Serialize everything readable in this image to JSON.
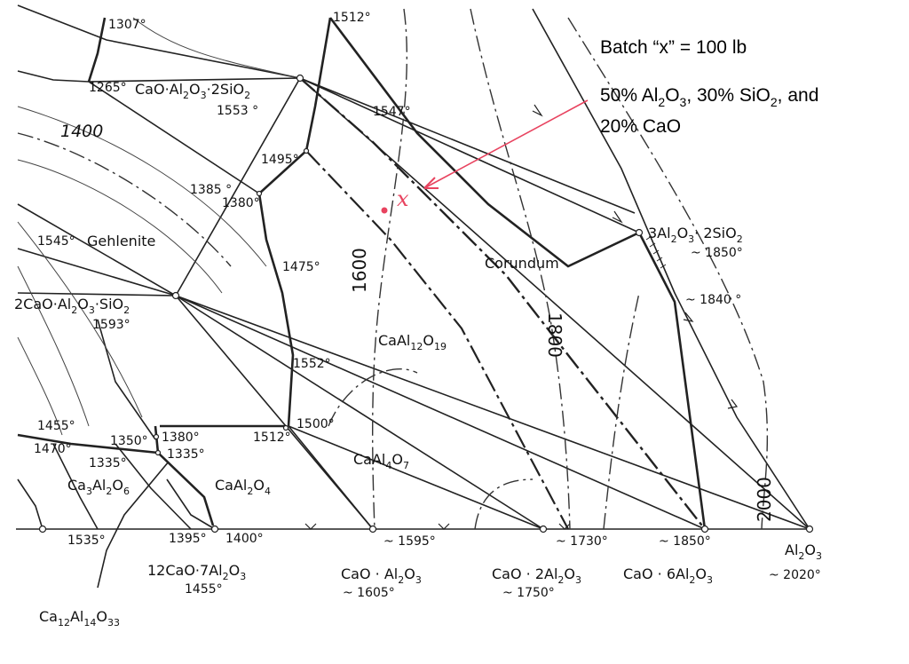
{
  "annotation": {
    "batch": "Batch “x” = 100 lb",
    "composition": {
      "al_pct": "50% Al",
      "sub2": "2",
      "sub3": "3",
      "si_pct": ", 30% SiO",
      "and": ", and",
      "cao_line": "20% CaO"
    },
    "point_label": "x",
    "color": "#e8435f"
  },
  "diagram": {
    "temps": {
      "t1307": "1307°",
      "t1512a": "1512°",
      "t1265": "1265°",
      "t1553": "1553 °",
      "t1547": "1547°",
      "t1400": "1400",
      "t1495": "1495°",
      "t1385": "1385 °",
      "t1380a": "1380°",
      "t1545": "1545°",
      "t1475": "1475°",
      "t1593": "1593°",
      "t1552": "1552°",
      "t1500": "1500°",
      "t1512b": "1512°",
      "t1455a": "1455°",
      "t1470": "1470°",
      "t1350": "1350°",
      "t1380b": "1380°",
      "t1335a": "1335°",
      "t1335b": "1335°",
      "t1535": "1535°",
      "t1395": "1395°",
      "t1400b": "1400°",
      "t1595": "~ 1595°",
      "t1730": "~ 1730°",
      "t1850a": "~ 1850°",
      "t1850b": "~ 1850°",
      "t1840": "~ 1840 °",
      "t2020": "~ 2020°",
      "t1605": "~ 1605°",
      "t1750": "~ 1750°",
      "t1455b": "1455°"
    },
    "isotherms": {
      "i1600": "1600",
      "i1800": "1800",
      "i2000": "2000"
    },
    "phases": {
      "gehlenite": "Gehlenite",
      "corundum": "Corundum",
      "anorthite_a": "CaO·Al",
      "anorthite_b": "O",
      "anorthite_c": "·2SiO",
      "gehlenite_f_a": "2CaO·Al",
      "gehlenite_f_b": "O",
      "gehlenite_f_c": "·SiO",
      "mullite_a": "3Al",
      "mullite_b": "O",
      "mullite_c": "· 2SiO",
      "ca6_a": "CaAl",
      "ca6_b": "O",
      "ca2_a": "CaAl",
      "ca2_b": "O",
      "ca1_a": "CaAl",
      "ca1_b": "O",
      "c3a_a": "Ca",
      "c3a_b": "Al",
      "c3a_c": "O",
      "c12a7_a": "12CaO·7Al",
      "c12a7_b": "O",
      "c12a7_alt_a": "Ca",
      "c12a7_alt_b": "Al",
      "c12a7_alt_c": "O",
      "ca_bottom_a": "CaO · Al",
      "ca_bottom_b": "O",
      "ca2_bottom_a": "CaO · 2Al",
      "ca2_bottom_b": "O",
      "ca6_bottom_a": "CaO · 6Al",
      "ca6_bottom_b": "O",
      "al2o3_a": "Al",
      "al2o3_b": "O",
      "sub2": "2",
      "sub3": "3",
      "sub4": "4",
      "sub6": "6",
      "sub7": "7",
      "sub12": "12",
      "sub14": "14",
      "sub19": "19",
      "sub33": "33"
    }
  }
}
